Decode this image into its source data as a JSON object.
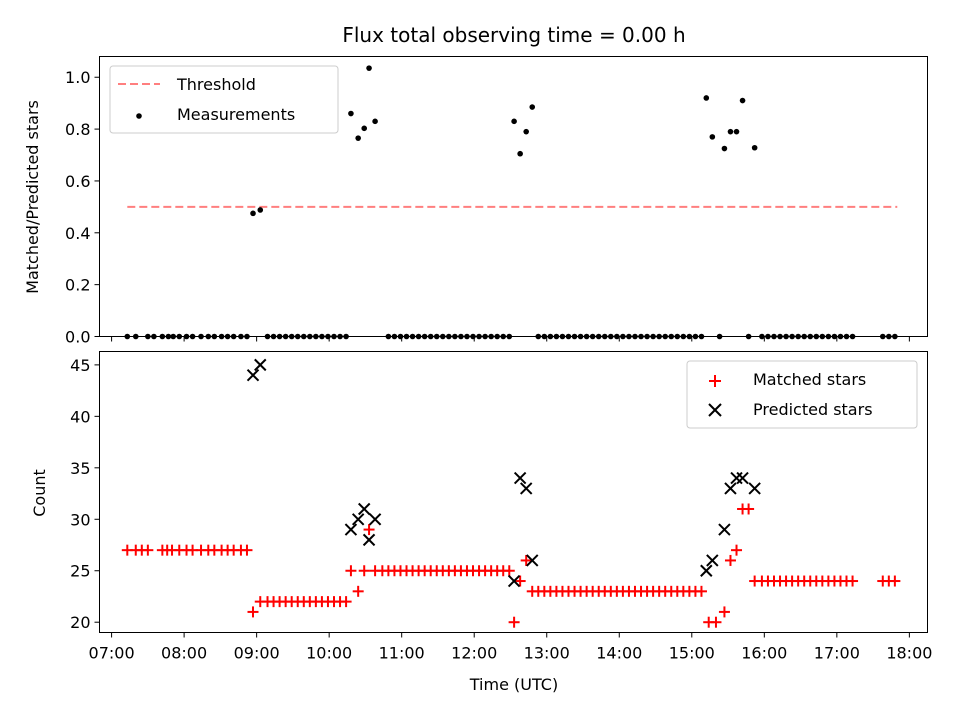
{
  "chart_data": [
    {
      "type": "scatter",
      "title": "Flux total observing time = 0.00 h",
      "ylabel": "Matched/Predicted stars",
      "xlabel": "",
      "xlim": [
        "06:50",
        "18:15"
      ],
      "ylim": [
        0,
        1.08
      ],
      "yticks": [
        "0.0",
        "0.2",
        "0.4",
        "0.6",
        "0.8",
        "1.0"
      ],
      "legend_position": "top-left",
      "threshold": {
        "name": "Threshold",
        "value": 0.5,
        "x_start": "07:13",
        "x_end": "17:50",
        "color": "#ff7f7f",
        "style": "dashed"
      },
      "series": [
        {
          "name": "Measurements",
          "color": "#000000",
          "marker": "dot",
          "points": [
            [
              "07:13",
              0.0
            ],
            [
              "07:20",
              0.0
            ],
            [
              "07:30",
              0.0
            ],
            [
              "07:35",
              0.0
            ],
            [
              "07:42",
              0.0
            ],
            [
              "07:47",
              0.0
            ],
            [
              "07:51",
              0.0
            ],
            [
              "07:56",
              0.0
            ],
            [
              "08:02",
              0.0
            ],
            [
              "08:07",
              0.0
            ],
            [
              "08:14",
              0.0
            ],
            [
              "08:20",
              0.0
            ],
            [
              "08:25",
              0.0
            ],
            [
              "08:31",
              0.0
            ],
            [
              "08:36",
              0.0
            ],
            [
              "08:41",
              0.0
            ],
            [
              "08:47",
              0.0
            ],
            [
              "08:52",
              0.0
            ],
            [
              "08:57",
              0.475
            ],
            [
              "09:03",
              0.488
            ],
            [
              "09:09",
              0.0
            ],
            [
              "09:14",
              0.0
            ],
            [
              "09:19",
              0.0
            ],
            [
              "09:24",
              0.0
            ],
            [
              "09:29",
              0.0
            ],
            [
              "09:34",
              0.0
            ],
            [
              "09:39",
              0.0
            ],
            [
              "09:44",
              0.0
            ],
            [
              "09:49",
              0.0
            ],
            [
              "09:54",
              0.0
            ],
            [
              "09:59",
              0.0
            ],
            [
              "10:04",
              0.0
            ],
            [
              "10:09",
              0.0
            ],
            [
              "10:14",
              0.0
            ],
            [
              "10:18",
              0.86
            ],
            [
              "10:24",
              0.765
            ],
            [
              "10:29",
              0.803
            ],
            [
              "10:33",
              1.035
            ],
            [
              "10:38",
              0.83
            ],
            [
              "10:49",
              0.0
            ],
            [
              "10:54",
              0.0
            ],
            [
              "10:59",
              0.0
            ],
            [
              "11:04",
              0.0
            ],
            [
              "11:09",
              0.0
            ],
            [
              "11:14",
              0.0
            ],
            [
              "11:19",
              0.0
            ],
            [
              "11:24",
              0.0
            ],
            [
              "11:29",
              0.0
            ],
            [
              "11:34",
              0.0
            ],
            [
              "11:39",
              0.0
            ],
            [
              "11:44",
              0.0
            ],
            [
              "11:49",
              0.0
            ],
            [
              "11:54",
              0.0
            ],
            [
              "11:59",
              0.0
            ],
            [
              "12:04",
              0.0
            ],
            [
              "12:09",
              0.0
            ],
            [
              "12:14",
              0.0
            ],
            [
              "12:19",
              0.0
            ],
            [
              "12:24",
              0.0
            ],
            [
              "12:29",
              0.0
            ],
            [
              "12:33",
              0.83
            ],
            [
              "12:38",
              0.705
            ],
            [
              "12:43",
              0.79
            ],
            [
              "12:48",
              0.885
            ],
            [
              "12:53",
              0.0
            ],
            [
              "12:58",
              0.0
            ],
            [
              "13:03",
              0.0
            ],
            [
              "13:08",
              0.0
            ],
            [
              "13:13",
              0.0
            ],
            [
              "13:18",
              0.0
            ],
            [
              "13:23",
              0.0
            ],
            [
              "13:28",
              0.0
            ],
            [
              "13:33",
              0.0
            ],
            [
              "13:38",
              0.0
            ],
            [
              "13:43",
              0.0
            ],
            [
              "13:48",
              0.0
            ],
            [
              "13:53",
              0.0
            ],
            [
              "13:58",
              0.0
            ],
            [
              "14:03",
              0.0
            ],
            [
              "14:08",
              0.0
            ],
            [
              "14:13",
              0.0
            ],
            [
              "14:18",
              0.0
            ],
            [
              "14:23",
              0.0
            ],
            [
              "14:28",
              0.0
            ],
            [
              "14:33",
              0.0
            ],
            [
              "14:38",
              0.0
            ],
            [
              "14:43",
              0.0
            ],
            [
              "14:48",
              0.0
            ],
            [
              "14:53",
              0.0
            ],
            [
              "14:58",
              0.0
            ],
            [
              "15:03",
              0.0
            ],
            [
              "15:08",
              0.0
            ],
            [
              "15:12",
              0.92
            ],
            [
              "15:17",
              0.77
            ],
            [
              "15:23",
              0.0
            ],
            [
              "15:27",
              0.725
            ],
            [
              "15:32",
              0.79
            ],
            [
              "15:37",
              0.79
            ],
            [
              "15:42",
              0.91
            ],
            [
              "15:47",
              0.0
            ],
            [
              "15:52",
              0.728
            ],
            [
              "15:58",
              0.0
            ],
            [
              "16:03",
              0.0
            ],
            [
              "16:08",
              0.0
            ],
            [
              "16:13",
              0.0
            ],
            [
              "16:18",
              0.0
            ],
            [
              "16:23",
              0.0
            ],
            [
              "16:28",
              0.0
            ],
            [
              "16:33",
              0.0
            ],
            [
              "16:38",
              0.0
            ],
            [
              "16:43",
              0.0
            ],
            [
              "16:48",
              0.0
            ],
            [
              "16:53",
              0.0
            ],
            [
              "16:58",
              0.0
            ],
            [
              "17:03",
              0.0
            ],
            [
              "17:08",
              0.0
            ],
            [
              "17:13",
              0.0
            ],
            [
              "17:38",
              0.0
            ],
            [
              "17:43",
              0.0
            ],
            [
              "17:48",
              0.0
            ]
          ]
        }
      ]
    },
    {
      "type": "scatter",
      "title": "",
      "xlabel": "Time (UTC)",
      "ylabel": "Count",
      "xlim": [
        "06:50",
        "18:15"
      ],
      "ylim": [
        19,
        46.3
      ],
      "xticks": [
        "07:00",
        "08:00",
        "09:00",
        "10:00",
        "11:00",
        "12:00",
        "13:00",
        "14:00",
        "15:00",
        "16:00",
        "17:00",
        "18:00"
      ],
      "yticks": [
        "20",
        "25",
        "30",
        "35",
        "40",
        "45"
      ],
      "legend_position": "top-right",
      "series": [
        {
          "name": "Matched stars",
          "color": "#ff0000",
          "marker": "plus",
          "points": [
            [
              "07:13",
              27
            ],
            [
              "07:20",
              27
            ],
            [
              "07:25",
              27
            ],
            [
              "07:30",
              27
            ],
            [
              "07:42",
              27
            ],
            [
              "07:46",
              27
            ],
            [
              "07:50",
              27
            ],
            [
              "07:56",
              27
            ],
            [
              "08:02",
              27
            ],
            [
              "08:07",
              27
            ],
            [
              "08:14",
              27
            ],
            [
              "08:20",
              27
            ],
            [
              "08:25",
              27
            ],
            [
              "08:31",
              27
            ],
            [
              "08:36",
              27
            ],
            [
              "08:41",
              27
            ],
            [
              "08:47",
              27
            ],
            [
              "08:52",
              27
            ],
            [
              "08:57",
              21
            ],
            [
              "09:03",
              22
            ],
            [
              "09:09",
              22
            ],
            [
              "09:14",
              22
            ],
            [
              "09:19",
              22
            ],
            [
              "09:24",
              22
            ],
            [
              "09:29",
              22
            ],
            [
              "09:34",
              22
            ],
            [
              "09:39",
              22
            ],
            [
              "09:44",
              22
            ],
            [
              "09:49",
              22
            ],
            [
              "09:54",
              22
            ],
            [
              "09:59",
              22
            ],
            [
              "10:04",
              22
            ],
            [
              "10:09",
              22
            ],
            [
              "10:14",
              22
            ],
            [
              "10:18",
              25
            ],
            [
              "10:24",
              23
            ],
            [
              "10:29",
              25
            ],
            [
              "10:33",
              29
            ],
            [
              "10:38",
              25
            ],
            [
              "10:44",
              25
            ],
            [
              "10:49",
              25
            ],
            [
              "10:54",
              25
            ],
            [
              "10:59",
              25
            ],
            [
              "11:04",
              25
            ],
            [
              "11:09",
              25
            ],
            [
              "11:14",
              25
            ],
            [
              "11:19",
              25
            ],
            [
              "11:24",
              25
            ],
            [
              "11:29",
              25
            ],
            [
              "11:34",
              25
            ],
            [
              "11:39",
              25
            ],
            [
              "11:44",
              25
            ],
            [
              "11:49",
              25
            ],
            [
              "11:54",
              25
            ],
            [
              "11:59",
              25
            ],
            [
              "12:04",
              25
            ],
            [
              "12:09",
              25
            ],
            [
              "12:14",
              25
            ],
            [
              "12:19",
              25
            ],
            [
              "12:24",
              25
            ],
            [
              "12:29",
              25
            ],
            [
              "12:33",
              20
            ],
            [
              "12:38",
              24
            ],
            [
              "12:43",
              26
            ],
            [
              "12:48",
              23
            ],
            [
              "12:53",
              23
            ],
            [
              "12:58",
              23
            ],
            [
              "13:03",
              23
            ],
            [
              "13:08",
              23
            ],
            [
              "13:13",
              23
            ],
            [
              "13:18",
              23
            ],
            [
              "13:23",
              23
            ],
            [
              "13:28",
              23
            ],
            [
              "13:33",
              23
            ],
            [
              "13:38",
              23
            ],
            [
              "13:43",
              23
            ],
            [
              "13:48",
              23
            ],
            [
              "13:53",
              23
            ],
            [
              "13:58",
              23
            ],
            [
              "14:03",
              23
            ],
            [
              "14:08",
              23
            ],
            [
              "14:13",
              23
            ],
            [
              "14:18",
              23
            ],
            [
              "14:23",
              23
            ],
            [
              "14:28",
              23
            ],
            [
              "14:33",
              23
            ],
            [
              "14:38",
              23
            ],
            [
              "14:43",
              23
            ],
            [
              "14:48",
              23
            ],
            [
              "14:53",
              23
            ],
            [
              "14:58",
              23
            ],
            [
              "15:03",
              23
            ],
            [
              "15:08",
              23
            ],
            [
              "15:14",
              20
            ],
            [
              "15:20",
              20
            ],
            [
              "15:27",
              21
            ],
            [
              "15:32",
              26
            ],
            [
              "15:37",
              27
            ],
            [
              "15:42",
              31
            ],
            [
              "15:47",
              31
            ],
            [
              "15:52",
              24
            ],
            [
              "15:58",
              24
            ],
            [
              "16:03",
              24
            ],
            [
              "16:08",
              24
            ],
            [
              "16:13",
              24
            ],
            [
              "16:18",
              24
            ],
            [
              "16:23",
              24
            ],
            [
              "16:28",
              24
            ],
            [
              "16:33",
              24
            ],
            [
              "16:38",
              24
            ],
            [
              "16:43",
              24
            ],
            [
              "16:48",
              24
            ],
            [
              "16:53",
              24
            ],
            [
              "16:58",
              24
            ],
            [
              "17:03",
              24
            ],
            [
              "17:08",
              24
            ],
            [
              "17:13",
              24
            ],
            [
              "17:38",
              24
            ],
            [
              "17:43",
              24
            ],
            [
              "17:48",
              24
            ]
          ]
        },
        {
          "name": "Predicted stars",
          "color": "#000000",
          "marker": "x",
          "points": [
            [
              "08:57",
              44
            ],
            [
              "09:03",
              45
            ],
            [
              "10:18",
              29
            ],
            [
              "10:24",
              30
            ],
            [
              "10:29",
              31
            ],
            [
              "10:33",
              28
            ],
            [
              "10:38",
              30
            ],
            [
              "12:33",
              24
            ],
            [
              "12:38",
              34
            ],
            [
              "12:43",
              33
            ],
            [
              "12:48",
              26
            ],
            [
              "15:12",
              25
            ],
            [
              "15:17",
              26
            ],
            [
              "15:27",
              29
            ],
            [
              "15:32",
              33
            ],
            [
              "15:37",
              34
            ],
            [
              "15:42",
              34
            ],
            [
              "15:52",
              33
            ]
          ]
        }
      ]
    }
  ]
}
